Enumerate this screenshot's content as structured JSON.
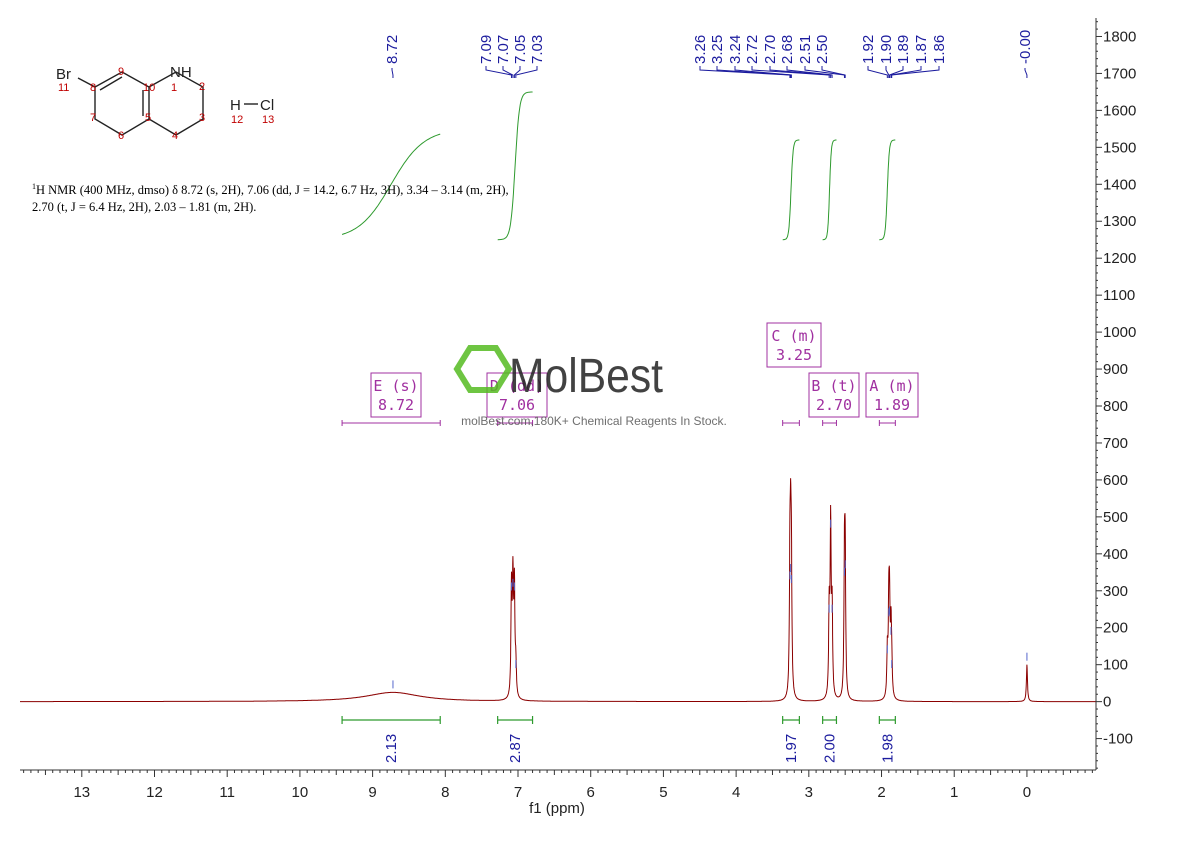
{
  "chart_data": {
    "type": "line",
    "xlabel": "f1 (ppm)",
    "x_ticks": [
      13,
      12,
      11,
      10,
      9,
      8,
      7,
      6,
      5,
      4,
      3,
      2,
      1,
      0
    ],
    "xlim": [
      13.85,
      -0.95
    ],
    "y_ticks": [
      1800,
      1700,
      1600,
      1500,
      1400,
      1300,
      1200,
      1100,
      1000,
      900,
      800,
      700,
      600,
      500,
      400,
      300,
      200,
      100,
      0,
      -100
    ],
    "ylim": [
      -185,
      1850
    ],
    "spectrum_peaks": [
      {
        "ppm": 8.72,
        "height": 25,
        "width": 0.45,
        "shape": "broad"
      },
      {
        "ppm": 7.09,
        "height": 290
      },
      {
        "ppm": 7.07,
        "height": 300
      },
      {
        "ppm": 7.05,
        "height": 290
      },
      {
        "ppm": 7.03,
        "height": 80
      },
      {
        "ppm": 3.26,
        "height": 320
      },
      {
        "ppm": 3.25,
        "height": 340
      },
      {
        "ppm": 3.24,
        "height": 310
      },
      {
        "ppm": 2.72,
        "height": 230
      },
      {
        "ppm": 2.7,
        "height": 460
      },
      {
        "ppm": 2.68,
        "height": 230
      },
      {
        "ppm": 2.51,
        "height": 330
      },
      {
        "ppm": 2.5,
        "height": 350
      },
      {
        "ppm": 1.92,
        "height": 120
      },
      {
        "ppm": 1.9,
        "height": 220
      },
      {
        "ppm": 1.89,
        "height": 225
      },
      {
        "ppm": 1.87,
        "height": 170
      },
      {
        "ppm": 1.86,
        "height": 80
      },
      {
        "ppm": 0.0,
        "height": 100
      }
    ],
    "peak_labels": [
      "8.72",
      "7.09",
      "7.07",
      "7.05",
      "7.03",
      "3.26",
      "3.25",
      "3.24",
      "2.72",
      "2.70",
      "2.68",
      "2.51",
      "2.50",
      "1.92",
      "1.90",
      "1.89",
      "1.87",
      "1.86",
      "-0.00"
    ],
    "integrations": [
      {
        "value": "2.13",
        "from": 9.42,
        "to": 8.07
      },
      {
        "value": "2.87",
        "from": 7.28,
        "to": 6.8
      },
      {
        "value": "1.97",
        "from": 3.36,
        "to": 3.13
      },
      {
        "value": "2.00",
        "from": 2.81,
        "to": 2.62
      },
      {
        "value": "1.98",
        "from": 2.03,
        "to": 1.81
      }
    ],
    "integral_curves": [
      {
        "from": 9.42,
        "to": 8.07,
        "y_start": 1250,
        "y_end": 1550
      },
      {
        "from": 7.28,
        "to": 6.8,
        "y_start": 1250,
        "y_end": 1650
      },
      {
        "from": 3.36,
        "to": 3.13,
        "y_start": 1250,
        "y_end": 1520
      },
      {
        "from": 2.81,
        "to": 2.62,
        "y_start": 1250,
        "y_end": 1520
      },
      {
        "from": 2.03,
        "to": 1.81,
        "y_start": 1250,
        "y_end": 1520
      }
    ],
    "multiplets": [
      {
        "label": "E (s)",
        "shift": "8.72",
        "from": 9.42,
        "to": 8.07
      },
      {
        "label": "D (dd)",
        "shift": "7.06",
        "from": 7.28,
        "to": 6.8
      },
      {
        "label": "C (m)",
        "shift": "3.25",
        "from": 3.36,
        "to": 3.13
      },
      {
        "label": "B (t)",
        "shift": "2.70",
        "from": 2.81,
        "to": 2.62
      },
      {
        "label": "A (m)",
        "shift": "1.89",
        "from": 2.03,
        "to": 1.81
      }
    ]
  },
  "structure": {
    "atoms": [
      "Br",
      "NH",
      "H",
      "Cl"
    ],
    "numbers": [
      "11",
      "8",
      "9",
      "10",
      "1",
      "2",
      "7",
      "6",
      "5",
      "4",
      "3",
      "12",
      "13"
    ]
  },
  "nmr_text": {
    "line1": "H NMR (400 MHz, dmso) δ 8.72 (s, 2H), 7.06 (dd, J = 14.2, 6.7 Hz, 3H), 3.34 – 3.14 (m, 2H),",
    "sup": "1",
    "line2": "2.70 (t, J = 6.4 Hz, 2H), 2.03 – 1.81 (m, 2H)."
  },
  "watermark": {
    "brand": "MolBest",
    "tagline": "molBest.com,180K+ Chemical Reagents In Stock."
  },
  "colors": {
    "spectrum": "#8b0000",
    "integral": "#2e9a2e",
    "peak_label": "#1c1c9e",
    "multiplet": "#a030a0",
    "watermark": "#55bb22"
  }
}
